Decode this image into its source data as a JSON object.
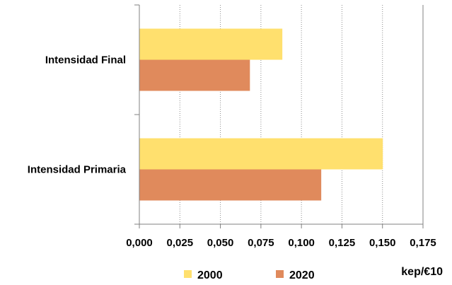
{
  "chart_data": {
    "type": "bar",
    "orientation": "horizontal",
    "categories": [
      "Intensidad Final",
      "Intensidad Primaria"
    ],
    "series": [
      {
        "name": "2000",
        "color": "#FFE06E",
        "values": [
          0.088,
          0.15
        ]
      },
      {
        "name": "2020",
        "color": "#E08A5C",
        "values": [
          0.068,
          0.112
        ]
      }
    ],
    "xlim": [
      0,
      0.175
    ],
    "x_ticks": [
      "0,000",
      "0,025",
      "0,050",
      "0,075",
      "0,100",
      "0,125",
      "0,150",
      "0,175"
    ],
    "x_tick_values": [
      0,
      0.025,
      0.05,
      0.075,
      0.1,
      0.125,
      0.15,
      0.175
    ],
    "xlabel": "kep/€10",
    "grid": "vertical dotted",
    "legend_position": "bottom"
  }
}
